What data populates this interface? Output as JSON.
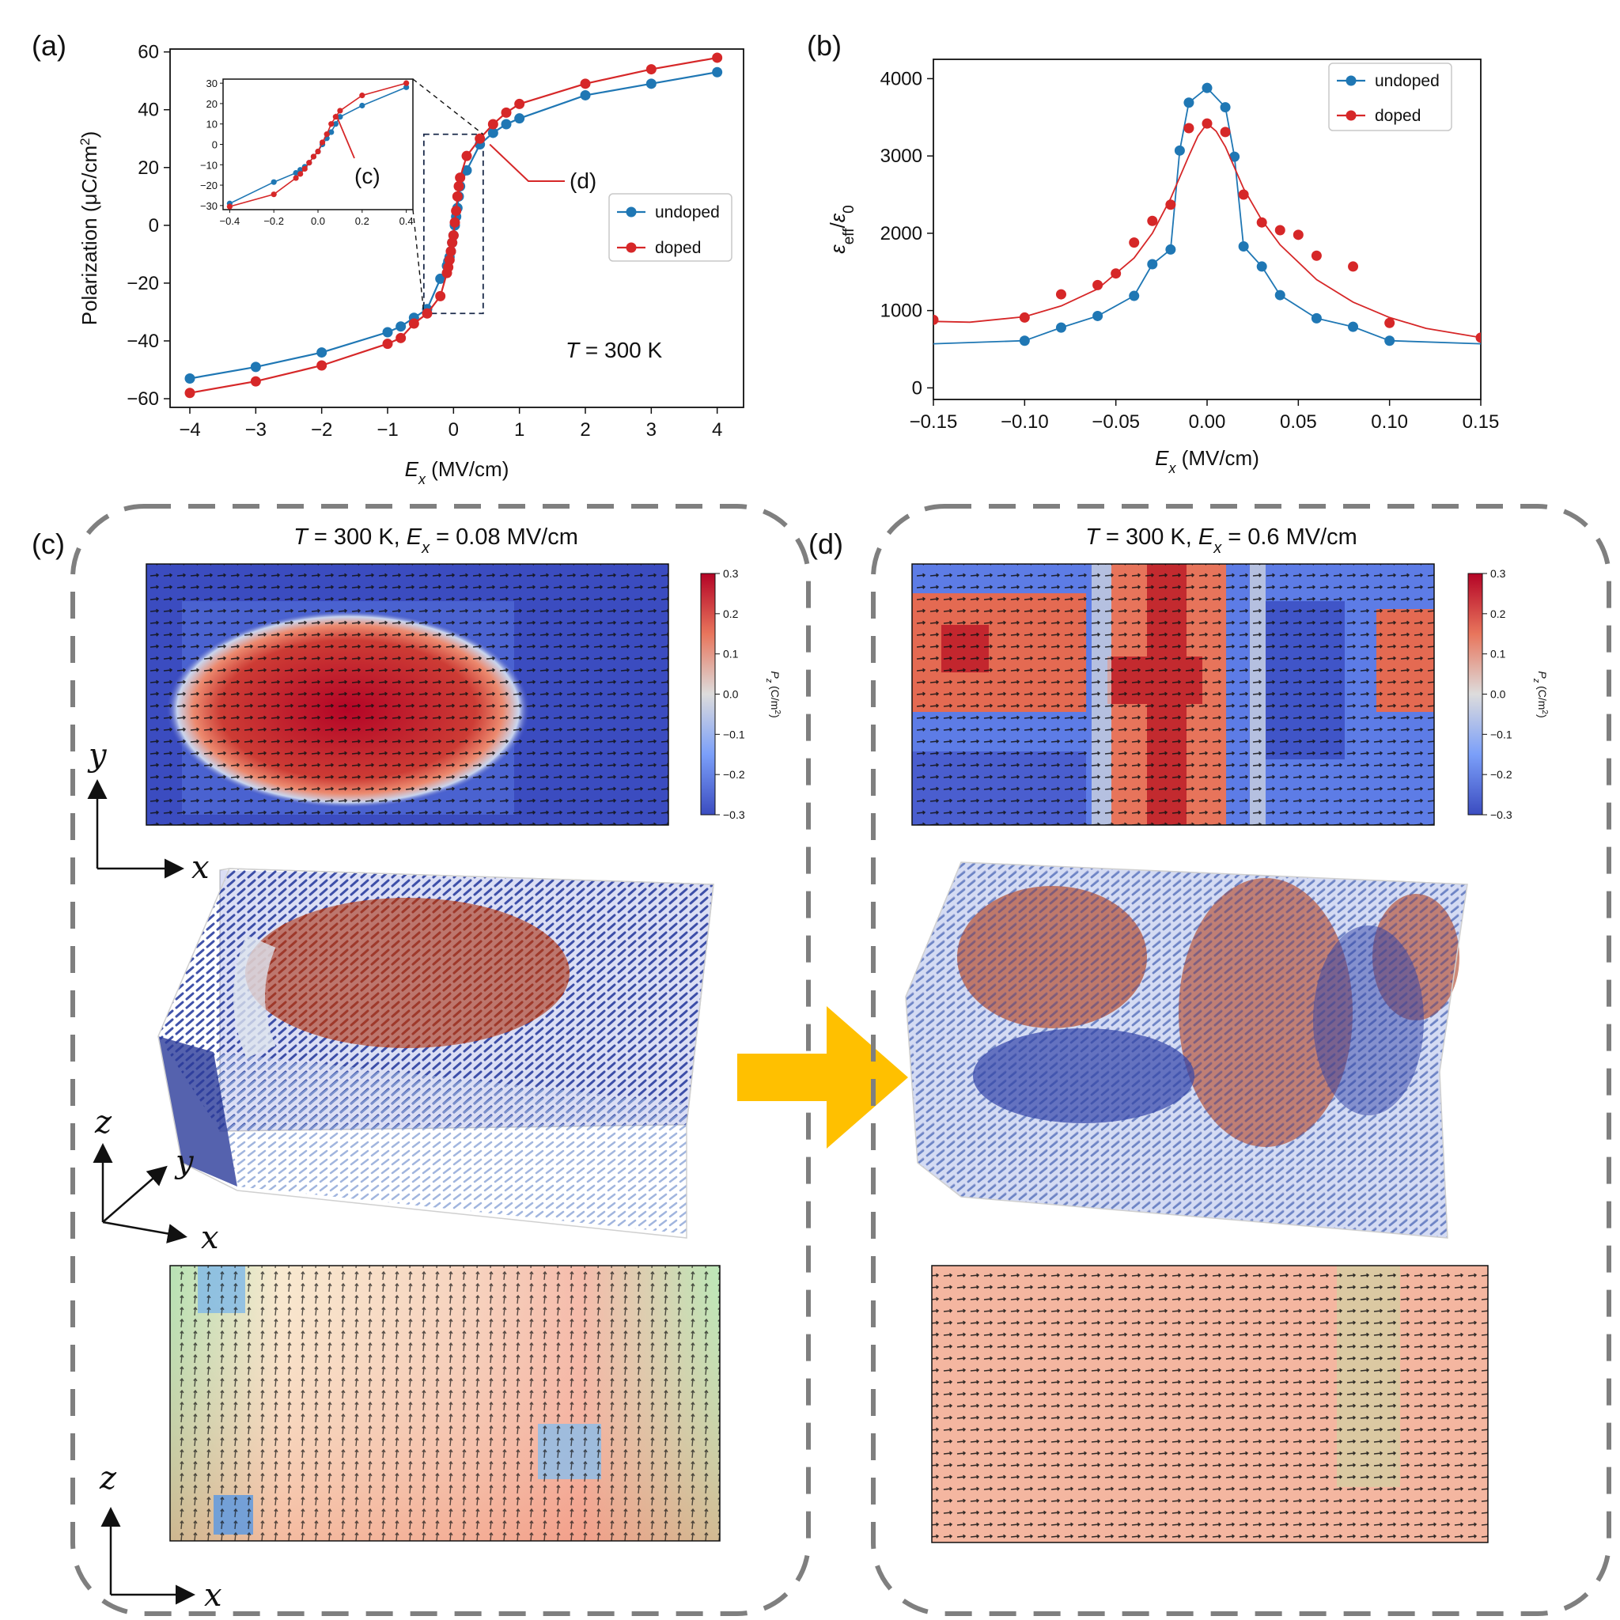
{
  "figure": {
    "panels": {
      "a": "(a)",
      "b": "(b)",
      "c": "(c)",
      "d": "(d)"
    },
    "colors": {
      "undoped": "#1f77b4",
      "doped": "#d62728",
      "arrow": "#ffc000",
      "box": "#7f7f7f"
    }
  },
  "chart_data": [
    {
      "id": "a",
      "type": "line",
      "xlabel_sym": "E",
      "xlabel_sub": "x",
      "xlabel_unit": " (MV/cm)",
      "ylabel": "Polarization (μC/cm",
      "ylabel_sup": "2",
      "ylabel_end": ")",
      "xlim": [
        -4.3,
        4.4
      ],
      "ylim": [
        -63,
        61
      ],
      "xticks": [
        -4,
        -3,
        -2,
        -1,
        0,
        1,
        2,
        3,
        4
      ],
      "yticks": [
        -60,
        -40,
        -20,
        0,
        20,
        40,
        60
      ],
      "annotation_T": "T",
      "annotation_rest": " = 300 K",
      "callouts": {
        "c": "(c)",
        "d": "(d)"
      },
      "zoom_box": {
        "x": [
          -0.45,
          0.45
        ],
        "y": [
          -30.5,
          31.5
        ]
      },
      "legend": [
        "undoped",
        "doped"
      ],
      "series": [
        {
          "name": "undoped",
          "x": [
            -4,
            -3,
            -2,
            -1,
            -0.8,
            -0.6,
            -0.4,
            -0.2,
            -0.1,
            -0.08,
            -0.06,
            -0.04,
            -0.02,
            0,
            0.02,
            0.04,
            0.06,
            0.08,
            0.1,
            0.2,
            0.4,
            0.6,
            0.8,
            1,
            2,
            3,
            4
          ],
          "y": [
            -53,
            -49,
            -44,
            -37,
            -35,
            -32,
            -29,
            -18.5,
            -14,
            -12.5,
            -11,
            -9,
            -6,
            -3.5,
            0,
            3,
            6,
            10,
            13.5,
            19,
            28,
            32,
            35,
            37,
            45,
            49,
            53
          ]
        },
        {
          "name": "doped",
          "x": [
            -4,
            -3,
            -2,
            -1,
            -0.8,
            -0.6,
            -0.4,
            -0.2,
            -0.1,
            -0.08,
            -0.06,
            -0.04,
            -0.02,
            0,
            0.02,
            0.04,
            0.06,
            0.08,
            0.1,
            0.2,
            0.4,
            0.6,
            0.8,
            1,
            2,
            3,
            4
          ],
          "y": [
            -58,
            -54,
            -48.5,
            -41,
            -39,
            -34,
            -30.5,
            -24.5,
            -16.5,
            -14.5,
            -12,
            -9,
            -6,
            -3.5,
            1,
            5,
            10,
            13.5,
            16.5,
            24,
            30,
            35,
            39,
            42,
            49,
            54,
            58
          ]
        }
      ],
      "inset": {
        "xlim": [
          -0.43,
          0.43
        ],
        "ylim": [
          -32,
          32
        ],
        "xticks": [
          "-0.4",
          "-0.2",
          "0.0",
          "0.2",
          "0.4"
        ],
        "xtick_values": [
          -0.4,
          -0.2,
          0,
          0.2,
          0.4
        ],
        "yticks": [
          -30,
          -20,
          -10,
          0,
          10,
          20,
          30
        ],
        "callout": "(c)"
      }
    },
    {
      "id": "b",
      "type": "scatter",
      "xlabel_sym": "E",
      "xlabel_sub": "x",
      "xlabel_unit": " (MV/cm)",
      "ylabel_eps": "ε",
      "ylabel_sub1": "eff",
      "ylabel_slash": "/",
      "ylabel_sub2": "0",
      "xlim": [
        -0.15,
        0.15
      ],
      "ylim": [
        -150,
        4250
      ],
      "xticks": [
        "-0.15",
        "-0.10",
        "-0.05",
        "0.00",
        "0.05",
        "0.10",
        "0.15"
      ],
      "xtick_values": [
        -0.15,
        -0.1,
        -0.05,
        0,
        0.05,
        0.1,
        0.15
      ],
      "yticks": [
        0,
        1000,
        2000,
        3000,
        4000
      ],
      "legend": [
        "undoped",
        "doped"
      ],
      "series": [
        {
          "name": "undoped",
          "x": [
            -0.1,
            -0.08,
            -0.06,
            -0.04,
            -0.03,
            -0.02,
            -0.015,
            -0.01,
            0,
            0.01,
            0.015,
            0.02,
            0.03,
            0.04,
            0.06,
            0.08,
            0.1
          ],
          "y": [
            610,
            780,
            930,
            1190,
            1600,
            1790,
            3070,
            3690,
            3880,
            3630,
            2990,
            1830,
            1570,
            1200,
            900,
            790,
            610
          ],
          "line_x": [
            -0.15,
            -0.1,
            -0.08,
            -0.06,
            -0.04,
            -0.03,
            -0.02,
            -0.015,
            -0.01,
            0,
            0.01,
            0.015,
            0.02,
            0.03,
            0.04,
            0.06,
            0.08,
            0.1,
            0.15
          ],
          "line_y": [
            570,
            610,
            780,
            930,
            1190,
            1600,
            1790,
            3070,
            3690,
            3880,
            3630,
            2990,
            1830,
            1570,
            1200,
            900,
            790,
            610,
            570
          ]
        },
        {
          "name": "doped",
          "x": [
            -0.15,
            -0.1,
            -0.08,
            -0.06,
            -0.05,
            -0.04,
            -0.03,
            -0.02,
            -0.01,
            0,
            0.01,
            0.02,
            0.03,
            0.04,
            0.05,
            0.06,
            0.08,
            0.1,
            0.15
          ],
          "y": [
            880,
            910,
            1210,
            1330,
            1480,
            1880,
            2160,
            2370,
            3360,
            3420,
            3310,
            2500,
            2140,
            2040,
            1980,
            1710,
            1570,
            840,
            650
          ],
          "line_x": [
            -0.15,
            -0.13,
            -0.1,
            -0.08,
            -0.06,
            -0.04,
            -0.03,
            -0.02,
            -0.01,
            -0.005,
            0,
            0.005,
            0.01,
            0.02,
            0.03,
            0.04,
            0.06,
            0.08,
            0.1,
            0.12,
            0.15
          ],
          "line_y": [
            860,
            850,
            920,
            1060,
            1280,
            1680,
            2000,
            2450,
            3000,
            3260,
            3420,
            3320,
            3120,
            2580,
            2170,
            1850,
            1400,
            1110,
            910,
            770,
            650
          ]
        }
      ]
    }
  ],
  "panel_c": {
    "title_T": "T",
    "title_mid": " = 300 K, ",
    "title_E": "E",
    "title_sub": "x",
    "title_end": " = 0.08 MV/cm",
    "colorbar_label": "P",
    "colorbar_sub": "z",
    "colorbar_unit": " (C/m",
    "colorbar_sup": "2",
    "colorbar_end": ")",
    "colorbar_ticks": [
      "0.3",
      "0.2",
      "0.1",
      "0.0",
      "−0.1",
      "−0.2",
      "−0.3"
    ],
    "axes_xy": {
      "y": "y",
      "x": "x"
    },
    "axes_3d": {
      "z": "z",
      "y": "y",
      "x": "x"
    },
    "axes_xz": {
      "z": "z",
      "x": "x"
    }
  },
  "panel_d": {
    "title_T": "T",
    "title_mid": " = 300 K, ",
    "title_E": "E",
    "title_sub": "x",
    "title_end": " = 0.6 MV/cm",
    "colorbar_label": "P",
    "colorbar_sub": "z",
    "colorbar_unit": " (C/m",
    "colorbar_sup": "2",
    "colorbar_end": ")",
    "colorbar_ticks": [
      "0.3",
      "0.2",
      "0.1",
      "0.0",
      "−0.1",
      "−0.2",
      "−0.3"
    ]
  }
}
